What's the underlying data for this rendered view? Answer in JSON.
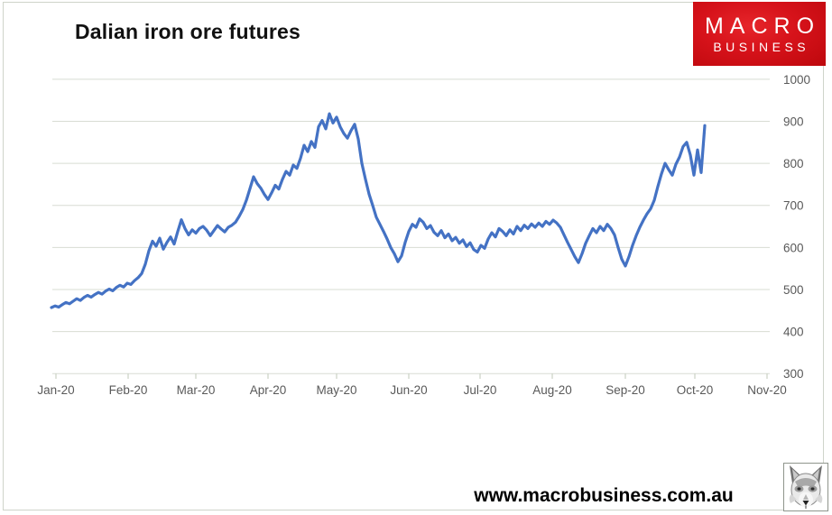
{
  "header": {
    "title": "Dalian iron ore futures"
  },
  "logo": {
    "line1": "MACRO",
    "line2": "BUSINESS",
    "bg_color": "#d6121a",
    "text_color": "#ffffff"
  },
  "footer": {
    "website": "www.macrobusiness.com.au",
    "image": "fox-sketch"
  },
  "chart_data": {
    "type": "line",
    "title": "Dalian iron ore futures",
    "xlabel": "",
    "ylabel": "",
    "x_tick_labels": [
      "Jan-20",
      "Feb-20",
      "Mar-20",
      "Apr-20",
      "May-20",
      "Jun-20",
      "Jul-20",
      "Aug-20",
      "Sep-20",
      "Oct-20",
      "Nov-20"
    ],
    "y_ticks": [
      1000,
      900,
      800,
      700,
      600,
      500,
      400,
      300
    ],
    "ylim": [
      300,
      1000
    ],
    "grid": "horizontal",
    "legend": "none",
    "series": [
      {
        "name": "Dalian iron ore futures",
        "color": "#4472C4",
        "coverage": "early Jan-20 through early Oct-20",
        "values": [
          457,
          461,
          458,
          464,
          469,
          466,
          472,
          478,
          474,
          481,
          486,
          482,
          488,
          493,
          489,
          496,
          501,
          497,
          505,
          510,
          506,
          515,
          512,
          521,
          528,
          538,
          560,
          592,
          615,
          603,
          622,
          596,
          612,
          625,
          608,
          638,
          666,
          645,
          630,
          642,
          634,
          645,
          650,
          641,
          628,
          640,
          652,
          644,
          637,
          648,
          653,
          660,
          674,
          690,
          712,
          740,
          768,
          752,
          741,
          726,
          714,
          730,
          748,
          739,
          762,
          781,
          772,
          796,
          788,
          812,
          843,
          828,
          852,
          838,
          887,
          902,
          882,
          918,
          896,
          910,
          887,
          871,
          860,
          878,
          893,
          858,
          800,
          762,
          727,
          700,
          672,
          655,
          638,
          620,
          600,
          585,
          566,
          580,
          612,
          638,
          655,
          648,
          668,
          660,
          645,
          652,
          636,
          628,
          640,
          623,
          632,
          616,
          624,
          610,
          618,
          602,
          611,
          595,
          589,
          605,
          598,
          620,
          635,
          625,
          645,
          638,
          628,
          642,
          632,
          650,
          640,
          653,
          645,
          656,
          648,
          658,
          650,
          662,
          655,
          665,
          658,
          648,
          630,
          612,
          595,
          578,
          564,
          585,
          610,
          628,
          645,
          635,
          650,
          640,
          655,
          645,
          630,
          600,
          572,
          556,
          578,
          605,
          628,
          648,
          665,
          680,
          692,
          712,
          745,
          775,
          800,
          785,
          772,
          798,
          815,
          840,
          850,
          820,
          772,
          832,
          778,
          890
        ]
      }
    ]
  }
}
